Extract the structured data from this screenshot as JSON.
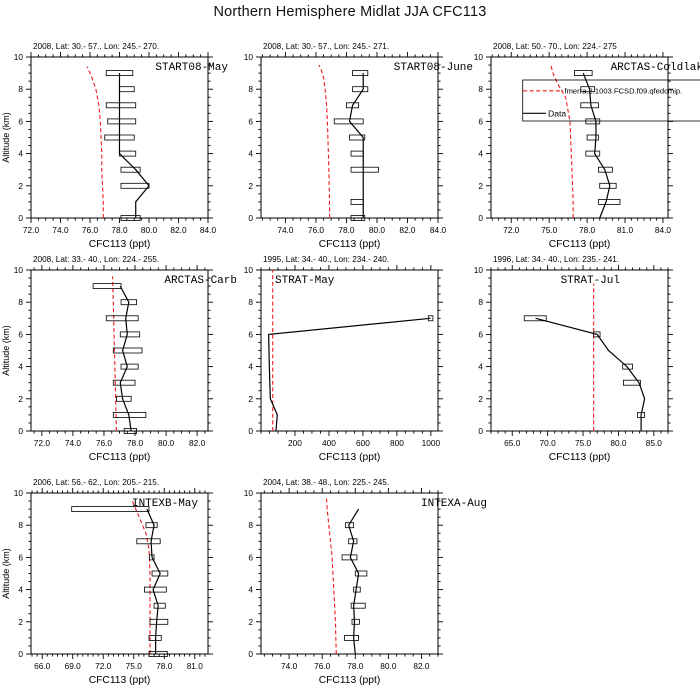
{
  "title": "Northern Hemisphere Midlat JJA CFC113",
  "legend": {
    "model_label": "fmerra.2.1003.FCSD.f09.qfedcmip.",
    "data_label": "Data",
    "model_color": "#ee1c1c",
    "data_color": "#000000"
  },
  "axis": {
    "xlabel": "CFC113 (ppt)",
    "ylabel": "Altitude (km)",
    "ylim": [
      0,
      10
    ],
    "yticks": [
      0,
      2,
      4,
      6,
      8,
      10
    ],
    "yminor": 0.5
  },
  "chart_data": [
    {
      "type": "line",
      "row": 0,
      "col": 0,
      "header": "2008, Lat:  30.- 57., Lon: 245.- 270.",
      "label": "START08-May",
      "label_anchor": "end",
      "label_x": 228,
      "show_ylabel": true,
      "has_legend": false,
      "xlim": [
        72.0,
        84.0
      ],
      "xticks": [
        72.0,
        74.0,
        76.0,
        78.0,
        80.0,
        82.0,
        84.0
      ],
      "xminor": 0.5,
      "xfmt": 1,
      "alt": [
        0,
        1,
        2,
        3,
        4,
        5,
        6,
        7,
        8,
        9
      ],
      "value": [
        79.1,
        79.1,
        80.0,
        79.1,
        78.0,
        78.0,
        78.0,
        78.0,
        78.0,
        78.0
      ],
      "box_lo": [
        78.1,
        null,
        78.1,
        78.1,
        78.0,
        77.0,
        77.2,
        77.1,
        78.0,
        77.1
      ],
      "box_hi": [
        79.4,
        null,
        80.0,
        79.4,
        79.1,
        79.0,
        79.1,
        79.1,
        79.0,
        78.9
      ],
      "model_value": [
        76.9,
        76.9,
        76.85,
        76.8,
        76.8,
        76.75,
        76.7,
        76.6,
        76.4,
        76.1,
        75.8
      ],
      "model_alt": [
        0,
        1,
        2,
        3,
        4,
        5,
        6,
        7,
        8,
        8.8,
        9.4
      ]
    },
    {
      "type": "line",
      "row": 0,
      "col": 1,
      "header": "2008, Lat:  30.- 57., Lon: 245.- 271.",
      "label": "START08-June",
      "label_anchor": "end",
      "label_x": 243,
      "show_ylabel": false,
      "has_legend": false,
      "xlim": [
        72.4,
        84.0
      ],
      "xticks": [
        74.0,
        76.0,
        78.0,
        80.0,
        82.0,
        84.0
      ],
      "xminor": 0.5,
      "xfmt": 1,
      "alt": [
        0,
        1,
        2,
        3,
        4,
        5,
        6,
        7,
        8,
        9
      ],
      "value": [
        79.1,
        79.1,
        79.1,
        79.1,
        79.1,
        79.1,
        78.2,
        78.4,
        79.1,
        79.1
      ],
      "box_lo": [
        78.3,
        78.3,
        null,
        78.3,
        78.3,
        78.2,
        77.2,
        78.0,
        78.4,
        78.4
      ],
      "box_hi": [
        79.2,
        79.1,
        null,
        80.1,
        79.1,
        79.2,
        79.1,
        78.8,
        79.4,
        79.4
      ],
      "model_value": [
        76.9,
        76.88,
        76.85,
        76.8,
        76.75,
        76.7,
        76.6,
        76.5,
        76.35,
        76.2
      ],
      "model_alt": [
        0,
        1.5,
        3,
        4.5,
        6,
        7,
        8,
        8.7,
        9.2,
        9.5
      ]
    },
    {
      "type": "line",
      "row": 0,
      "col": 2,
      "header": "2008, Lat:  50.- 70., Lon: 224.- 275",
      "label": "ARCTAS-Coldlak",
      "label_anchor": "end",
      "label_x": 243,
      "show_ylabel": false,
      "has_legend": true,
      "xlim": [
        70.4,
        84.4
      ],
      "xticks": [
        72.0,
        75.0,
        78.0,
        81.0,
        84.0
      ],
      "xminor": 0.5,
      "xfmt": 1,
      "alt": [
        0,
        1,
        2,
        3,
        4,
        5,
        6,
        7,
        8,
        9
      ],
      "value": [
        79.0,
        79.5,
        79.8,
        79.4,
        78.6,
        78.7,
        78.7,
        78.3,
        78.2,
        77.7
      ],
      "box_lo": [
        null,
        78.9,
        79.0,
        78.9,
        77.9,
        78.0,
        77.9,
        77.5,
        77.5,
        77.0
      ],
      "box_hi": [
        null,
        80.6,
        80.3,
        80.0,
        79.0,
        78.9,
        79.0,
        78.9,
        78.6,
        78.4
      ],
      "model_value": [
        76.9,
        76.9,
        76.85,
        76.8,
        76.75,
        76.7,
        76.65,
        76.3,
        75.7,
        75.3,
        75.1
      ],
      "model_alt": [
        0,
        1,
        2,
        3,
        4,
        5,
        6,
        7.5,
        8.3,
        9.0,
        9.6
      ]
    },
    {
      "type": "line",
      "row": 1,
      "col": 0,
      "header": "2008, Lat:  33.- 40., Lon: 224.- 255.",
      "label": "ARCTAS-Carb",
      "label_anchor": "end",
      "label_x": 237,
      "show_ylabel": true,
      "has_legend": false,
      "xlim": [
        71.3,
        82.7
      ],
      "xticks": [
        72.0,
        74.0,
        76.0,
        78.0,
        80.0,
        82.0
      ],
      "xminor": 0.5,
      "xfmt": 1,
      "alt": [
        0,
        1,
        2,
        3,
        4,
        5,
        6,
        7,
        8,
        9
      ],
      "value": [
        77.75,
        77.6,
        77.2,
        77.05,
        77.5,
        77.2,
        77.5,
        77.4,
        77.6,
        77.05
      ],
      "box_lo": [
        77.3,
        76.6,
        76.8,
        76.6,
        77.1,
        76.6,
        77.05,
        76.15,
        77.1,
        75.3
      ],
      "box_hi": [
        78.1,
        78.7,
        77.75,
        78.0,
        78.2,
        78.45,
        78.3,
        78.2,
        78.1,
        77.1
      ],
      "model_value": [
        76.8,
        76.75,
        76.7,
        76.65,
        76.6,
        76.55
      ],
      "model_alt": [
        0,
        2,
        4,
        6,
        8,
        9.6
      ]
    },
    {
      "type": "line",
      "row": 1,
      "col": 1,
      "header": "1995, Lat: 34.- 40., Lon: 234.- 240.",
      "label": "STRAT-May",
      "label_anchor": "start",
      "label_x": 45,
      "show_ylabel": false,
      "has_legend": false,
      "xlim": [
        0,
        1042
      ],
      "xticks": [
        200,
        400,
        600,
        800,
        1000
      ],
      "xminor": 50,
      "xfmt": 0,
      "alt": [
        0,
        1,
        2,
        3,
        4,
        5,
        6,
        7
      ],
      "value": [
        88,
        96,
        55,
        52,
        49,
        47,
        45,
        998
      ],
      "box_lo": [
        null,
        null,
        null,
        null,
        null,
        null,
        null,
        985
      ],
      "box_hi": [
        null,
        null,
        null,
        null,
        null,
        null,
        null,
        1012
      ],
      "model_value": [
        69,
        69
      ],
      "model_alt": [
        0,
        10
      ]
    },
    {
      "type": "line",
      "row": 1,
      "col": 2,
      "header": "1996, Lat: 34.- 40., Lon: 235.- 241.",
      "label": "STRAT-Jul",
      "label_anchor": "end",
      "label_x": 160,
      "show_ylabel": false,
      "has_legend": false,
      "xlim": [
        62,
        87
      ],
      "xticks": [
        65.0,
        70.0,
        75.0,
        80.0,
        85.0
      ],
      "xminor": 1.0,
      "xfmt": 1,
      "alt": [
        0,
        1,
        2,
        3,
        4,
        5,
        6,
        7
      ],
      "value": [
        83.2,
        83.2,
        83.7,
        82.9,
        81.2,
        78.6,
        77.0,
        68.3
      ],
      "box_lo": [
        null,
        82.7,
        null,
        80.7,
        80.6,
        null,
        76.5,
        66.7
      ],
      "box_hi": [
        null,
        83.7,
        null,
        83.1,
        82.0,
        null,
        77.4,
        69.8
      ],
      "model_value": [
        76.5,
        76.5
      ],
      "model_alt": [
        0,
        9.15
      ]
    },
    {
      "type": "line",
      "row": 2,
      "col": 0,
      "header": "2006, Lat: 56.- 62., Lon: 205.- 215.",
      "label": "INTEXB-May",
      "label_anchor": "end",
      "label_x": 198,
      "show_ylabel": true,
      "has_legend": false,
      "xlim": [
        64.9,
        82.3
      ],
      "xticks": [
        66.0,
        69.0,
        72.0,
        75.0,
        78.0,
        81.0
      ],
      "xminor": 0.5,
      "xfmt": 1,
      "alt": [
        0,
        1,
        2,
        3,
        4,
        5,
        6,
        7,
        8,
        9
      ],
      "value": [
        77.15,
        77.15,
        77.25,
        77.4,
        76.9,
        77.6,
        76.8,
        76.7,
        77.0,
        76.3
      ],
      "box_lo": [
        76.5,
        76.5,
        76.6,
        77.0,
        76.05,
        76.8,
        76.55,
        75.3,
        76.2,
        68.9
      ],
      "box_hi": [
        78.3,
        77.7,
        78.35,
        78.1,
        78.2,
        78.35,
        77.0,
        77.6,
        77.3,
        76.5
      ],
      "model_value": [
        76.6,
        76.6,
        76.6,
        76.5,
        76.2,
        75.6,
        75.2,
        74.8
      ],
      "model_alt": [
        0,
        3,
        5,
        6.5,
        7.5,
        8.4,
        9.0,
        9.6
      ]
    },
    {
      "type": "line",
      "row": 2,
      "col": 1,
      "header": "2004, Lat: 38.- 48., Lon: 225.- 245.",
      "label": "INTEXA-Aug",
      "label_anchor": "end",
      "label_x": 257,
      "show_ylabel": false,
      "has_legend": false,
      "xlim": [
        72.3,
        83.0
      ],
      "xticks": [
        74.0,
        76.0,
        78.0,
        80.0,
        82.0
      ],
      "xminor": 0.5,
      "xfmt": 1,
      "alt": [
        0,
        1,
        2,
        3,
        4,
        5,
        6,
        7,
        8,
        9
      ],
      "value": [
        78.0,
        77.9,
        77.95,
        77.9,
        78.05,
        78.2,
        77.7,
        77.9,
        77.6,
        78.2
      ],
      "box_lo": [
        null,
        77.35,
        77.8,
        77.75,
        77.9,
        78.0,
        77.2,
        77.6,
        77.4,
        null
      ],
      "box_hi": [
        null,
        78.2,
        78.25,
        78.6,
        78.3,
        78.7,
        78.1,
        78.1,
        77.9,
        null
      ],
      "model_value": [
        76.85,
        76.8,
        76.7,
        76.6,
        76.45,
        76.3,
        76.25
      ],
      "model_alt": [
        0,
        2,
        4,
        6,
        7.5,
        9,
        9.8
      ]
    }
  ]
}
